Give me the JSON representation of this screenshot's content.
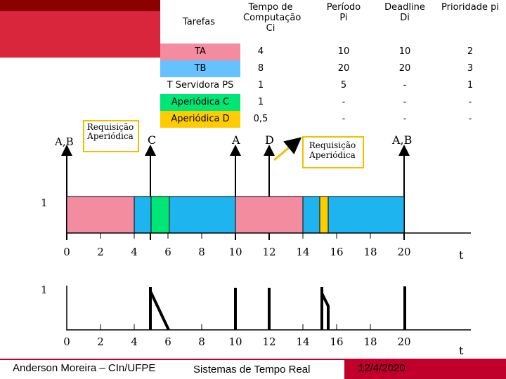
{
  "table": {
    "headers": {
      "task": "Tarefas",
      "comp": "Tempo de Computação Ci",
      "period": "Período Pi",
      "deadline": "Deadline Di",
      "priority": "Prioridade pi"
    },
    "rows": [
      {
        "task": "TA",
        "ci": "4",
        "pi": "10",
        "di": "10",
        "prio": "2",
        "color": "#f48ca0"
      },
      {
        "task": "TB",
        "ci": "8",
        "pi": "20",
        "di": "20",
        "prio": "3",
        "color": "#66c2ff"
      },
      {
        "task": "T Servidora PS",
        "ci": "1",
        "pi": "5",
        "di": "-",
        "prio": "1",
        "color": "#ffffff"
      },
      {
        "task": "Aperiódica C",
        "ci": "1",
        "pi": "-",
        "di": "-",
        "prio": "-",
        "color": "#00e676"
      },
      {
        "task": "Aperiódica D",
        "ci": "0,5",
        "pi": "-",
        "di": "-",
        "prio": "-",
        "color": "#ffcc00"
      }
    ]
  },
  "labels": {
    "ab_left": "A,B",
    "req_left": "Requisição Aperiódica",
    "c": "C",
    "a": "A",
    "d": "D",
    "req_right": "Requisição Aperiódica",
    "ab_right": "A,B",
    "row1": "1",
    "row2": "1",
    "t1": "t",
    "t2": "t"
  },
  "axis_ticks": [
    "0",
    "2",
    "4",
    "6",
    "8",
    "10",
    "12",
    "14",
    "16",
    "18",
    "20"
  ],
  "footer": {
    "author": "Anderson Moreira – CIn/UFPE",
    "course": "Sistemas de Tempo Real",
    "date": "12/4/2020"
  },
  "colors": {
    "ta": "#f48ca0",
    "tb": "#1eb4f0",
    "c": "#00e676",
    "d": "#ffcc00",
    "brand_red": "#d9263d",
    "brand_dark": "#8b0000",
    "date_bg": "#c0002a"
  }
}
